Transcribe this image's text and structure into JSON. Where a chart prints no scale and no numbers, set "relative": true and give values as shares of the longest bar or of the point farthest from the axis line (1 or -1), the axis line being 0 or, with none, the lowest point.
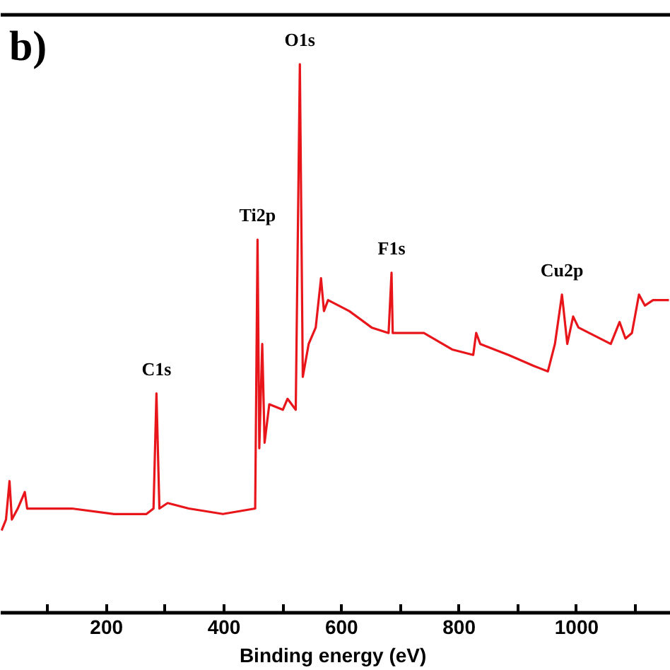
{
  "chart_data": {
    "type": "line",
    "title": "b)",
    "xlabel": "Binding energy  (eV)",
    "relative": true,
    "x": [
      21.5,
      29,
      35,
      39,
      49,
      61,
      65,
      85,
      141,
      213,
      268,
      280,
      285,
      290,
      304,
      340,
      398,
      453,
      457,
      460,
      465,
      469,
      477,
      500,
      508,
      522,
      529,
      534,
      544,
      556,
      565,
      570,
      577,
      613,
      651,
      680,
      685,
      687,
      740,
      788,
      824,
      829,
      836,
      884,
      927,
      951,
      963,
      975,
      984,
      994,
      1003,
      1058,
      1073,
      1083,
      1094,
      1106,
      1116,
      1130,
      1157
    ],
    "series": [
      {
        "color": "#e8161b",
        "values": [
          0.15,
          0.17,
          0.24,
          0.17,
          0.19,
          0.22,
          0.19,
          0.19,
          0.19,
          0.18,
          0.18,
          0.19,
          0.4,
          0.19,
          0.2,
          0.19,
          0.18,
          0.19,
          0.68,
          0.3,
          0.49,
          0.31,
          0.38,
          0.37,
          0.39,
          0.37,
          1.0,
          0.43,
          0.49,
          0.52,
          0.61,
          0.55,
          0.57,
          0.55,
          0.52,
          0.51,
          0.62,
          0.51,
          0.51,
          0.48,
          0.47,
          0.51,
          0.49,
          0.47,
          0.45,
          0.44,
          0.49,
          0.58,
          0.49,
          0.54,
          0.52,
          0.49,
          0.53,
          0.5,
          0.51,
          0.58,
          0.56,
          0.57,
          0.57
        ]
      }
    ],
    "xlim": [
      20,
      1160
    ],
    "xticks": [
      {
        "value": 100,
        "label": null
      },
      200,
      {
        "value": 300,
        "label": null
      },
      400,
      {
        "value": 500,
        "label": null
      },
      600,
      {
        "value": 700,
        "label": null
      },
      800,
      {
        "value": 900,
        "label": null
      },
      1000,
      {
        "value": 1100,
        "label": null
      }
    ],
    "annotations": [
      {
        "text": "C1s",
        "x": 285,
        "y": 0.4
      },
      {
        "text": "Ti2p",
        "x": 457,
        "y": 0.68
      },
      {
        "text": "O1s",
        "x": 529,
        "y": 1.0
      },
      {
        "text": "F1s",
        "x": 685,
        "y": 0.62
      },
      {
        "text": "Cu2p",
        "x": 975,
        "y": 0.58
      }
    ],
    "grid": false,
    "marker": "none",
    "line_style": "solid"
  }
}
